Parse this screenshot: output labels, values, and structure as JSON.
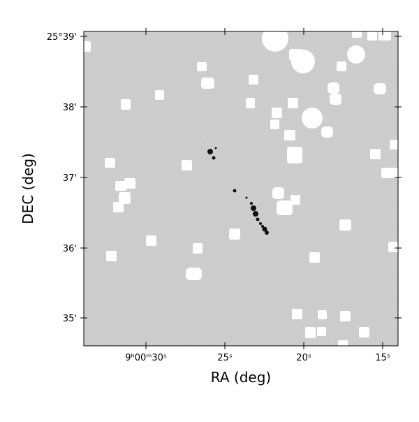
{
  "axes": {
    "xlabel": "RA (deg)",
    "ylabel": "DEC (deg)",
    "xticks": [
      "9ʰ00ᵐ30ˢ",
      "25ˢ",
      "20ˢ",
      "15ˢ"
    ],
    "yticks": [
      "25°39'",
      "38'",
      "37'",
      "36'",
      "35'"
    ]
  }
}
